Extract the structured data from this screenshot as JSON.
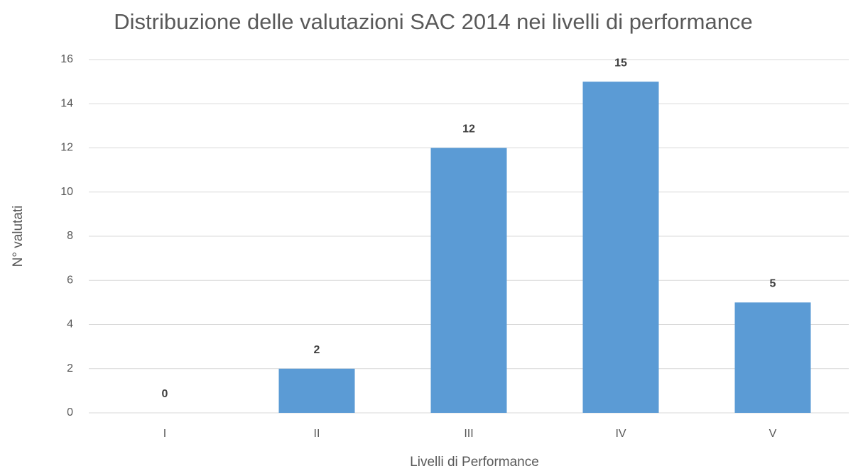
{
  "chart_data": {
    "type": "bar",
    "title": "Distribuzione delle valutazioni SAC 2014 nei livelli di performance",
    "x_label": "Livelli di Performance",
    "y_label": "N° valutati",
    "categories": [
      "I",
      "II",
      "III",
      "IV",
      "V"
    ],
    "values": [
      0,
      2,
      12,
      15,
      5
    ],
    "color": "#5b9bd5",
    "ylim": [
      0,
      16
    ],
    "yticks": [
      0,
      2,
      4,
      6,
      8,
      10,
      12,
      14,
      16
    ],
    "grid": true
  }
}
